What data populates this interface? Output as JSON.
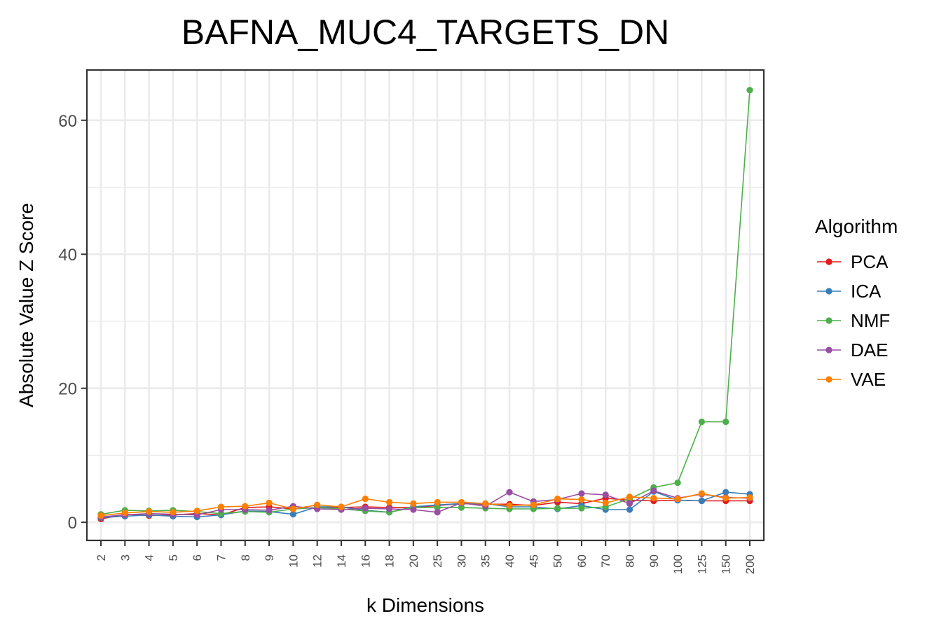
{
  "chart_data": {
    "type": "line",
    "title": "BAFNA_MUC4_TARGETS_DN",
    "xlabel": "k Dimensions",
    "ylabel": "Absolute Value Z Score",
    "ylim": [
      -2.7,
      67.5
    ],
    "yticks": [
      0,
      20,
      40,
      60
    ],
    "grid": true,
    "legend_title": "Algorithm",
    "legend_position": "right",
    "categories": [
      "2",
      "3",
      "4",
      "5",
      "6",
      "7",
      "8",
      "9",
      "10",
      "12",
      "14",
      "16",
      "18",
      "20",
      "25",
      "30",
      "35",
      "40",
      "45",
      "50",
      "60",
      "70",
      "80",
      "90",
      "100",
      "125",
      "150",
      "200"
    ],
    "series": [
      {
        "name": "PCA",
        "color": "#e41a1c",
        "values": [
          0.5,
          1.2,
          1.0,
          1.1,
          1.3,
          1.1,
          2.2,
          2.3,
          2.0,
          2.2,
          2.2,
          2.3,
          2.2,
          2.2,
          2.5,
          2.8,
          2.7,
          2.7,
          2.5,
          3.0,
          2.8,
          3.6,
          3.3,
          3.2,
          3.3,
          3.2,
          3.2,
          3.2
        ]
      },
      {
        "name": "ICA",
        "color": "#377eb8",
        "values": [
          0.7,
          0.9,
          1.1,
          0.9,
          0.8,
          1.1,
          1.7,
          1.6,
          1.2,
          2.3,
          2.3,
          1.8,
          1.5,
          2.3,
          2.6,
          2.8,
          2.8,
          2.3,
          2.3,
          2.0,
          2.5,
          1.9,
          1.9,
          4.6,
          3.3,
          3.2,
          4.5,
          4.2
        ]
      },
      {
        "name": "NMF",
        "color": "#4daf4a",
        "values": [
          1.2,
          1.8,
          1.7,
          1.8,
          1.6,
          1.3,
          1.6,
          1.5,
          2.0,
          2.2,
          2.0,
          1.7,
          1.5,
          2.2,
          2.2,
          2.2,
          2.1,
          2.0,
          2.0,
          2.1,
          2.1,
          2.3,
          3.5,
          5.2,
          5.9,
          15.0,
          15.0,
          64.5
        ]
      },
      {
        "name": "DAE",
        "color": "#984ea3",
        "values": [
          0.8,
          1.1,
          1.3,
          1.2,
          1.1,
          1.9,
          1.9,
          1.8,
          2.4,
          2.0,
          1.9,
          2.1,
          2.0,
          1.9,
          1.5,
          2.9,
          2.4,
          4.5,
          3.1,
          3.4,
          4.3,
          4.1,
          2.8,
          4.7,
          3.6,
          4.2,
          3.7,
          3.6
        ]
      },
      {
        "name": "VAE",
        "color": "#ff7f00",
        "values": [
          1.0,
          1.4,
          1.6,
          1.5,
          1.7,
          2.3,
          2.4,
          2.9,
          2.0,
          2.6,
          2.3,
          3.5,
          3.0,
          2.8,
          3.0,
          3.0,
          2.8,
          2.5,
          2.6,
          3.5,
          3.4,
          2.9,
          3.8,
          3.6,
          3.5,
          4.3,
          3.6,
          3.7
        ]
      }
    ]
  }
}
